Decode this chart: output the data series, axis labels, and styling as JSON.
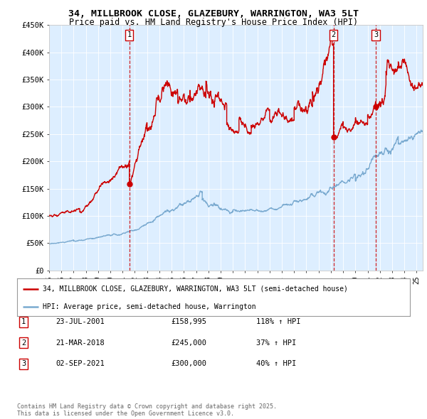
{
  "title_line1": "34, MILLBROOK CLOSE, GLAZEBURY, WARRINGTON, WA3 5LT",
  "title_line2": "Price paid vs. HM Land Registry's House Price Index (HPI)",
  "ylabel_ticks": [
    "£0",
    "£50K",
    "£100K",
    "£150K",
    "£200K",
    "£250K",
    "£300K",
    "£350K",
    "£400K",
    "£450K"
  ],
  "ytick_values": [
    0,
    50000,
    100000,
    150000,
    200000,
    250000,
    300000,
    350000,
    400000,
    450000
  ],
  "plot_bg_color": "#ddeeff",
  "red_line_color": "#cc0000",
  "blue_line_color": "#7aaad0",
  "legend_label_red": "34, MILLBROOK CLOSE, GLAZEBURY, WARRINGTON, WA3 5LT (semi-detached house)",
  "legend_label_blue": "HPI: Average price, semi-detached house, Warrington",
  "transactions": [
    {
      "num": 1,
      "date": "23-JUL-2001",
      "price": 158995,
      "year": 2001.55,
      "pct": "118% ↑ HPI"
    },
    {
      "num": 2,
      "date": "21-MAR-2018",
      "price": 245000,
      "year": 2018.22,
      "pct": "37% ↑ HPI"
    },
    {
      "num": 3,
      "date": "02-SEP-2021",
      "price": 300000,
      "year": 2021.67,
      "pct": "40% ↑ HPI"
    }
  ],
  "footer": "Contains HM Land Registry data © Crown copyright and database right 2025.\nThis data is licensed under the Open Government Licence v3.0.",
  "xmin": 1995.0,
  "xmax": 2025.5,
  "ymin": 0,
  "ymax": 450000
}
